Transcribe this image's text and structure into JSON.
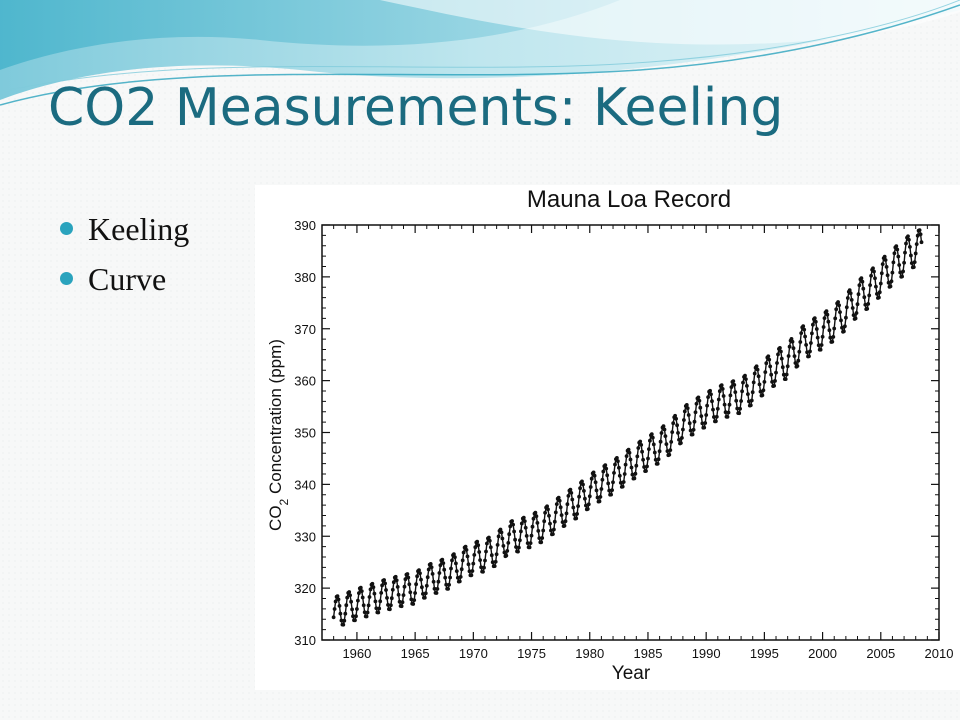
{
  "slide": {
    "title": "CO2 Measurements: Keeling",
    "bullets": [
      "Keeling",
      "Curve"
    ]
  },
  "colors": {
    "title": "#1b6b80",
    "bullet": "#2aa3bd",
    "swoosh_light": "#bfe6ee",
    "swoosh_dark": "#4fb8cf",
    "series": "#111111"
  },
  "chart_data": {
    "type": "line",
    "title": "Mauna Loa Record",
    "xlabel": "Year",
    "ylabel_main": "CO",
    "ylabel_sub": "2",
    "ylabel_rest": " Concentration (ppm)",
    "xlim": [
      1957,
      2010
    ],
    "ylim": [
      310,
      390
    ],
    "xticks": [
      1960,
      1965,
      1970,
      1975,
      1980,
      1985,
      1990,
      1995,
      2000,
      2005,
      2010
    ],
    "yticks": [
      310,
      320,
      330,
      340,
      350,
      360,
      370,
      380,
      390
    ],
    "grid": false,
    "series": [
      {
        "markers": "filled-circle",
        "x": [
          1958,
          1959,
          1960,
          1961,
          1962,
          1963,
          1964,
          1965,
          1966,
          1967,
          1968,
          1969,
          1970,
          1971,
          1972,
          1973,
          1974,
          1975,
          1976,
          1977,
          1978,
          1979,
          1980,
          1981,
          1982,
          1983,
          1984,
          1985,
          1986,
          1987,
          1988,
          1989,
          1990,
          1991,
          1992,
          1993,
          1994,
          1995,
          1996,
          1997,
          1998,
          1999,
          2000,
          2001,
          2002,
          2003,
          2004,
          2005,
          2006,
          2007,
          2008
        ],
        "y": [
          315.3,
          316.0,
          316.9,
          317.6,
          318.4,
          319.0,
          319.6,
          320.0,
          321.4,
          322.2,
          323.0,
          324.6,
          325.7,
          326.3,
          327.5,
          329.7,
          330.2,
          331.1,
          332.1,
          333.8,
          335.4,
          336.8,
          338.7,
          340.1,
          341.4,
          343.0,
          344.6,
          346.0,
          347.4,
          349.2,
          351.6,
          353.1,
          354.4,
          355.6,
          356.4,
          357.1,
          358.8,
          360.8,
          362.6,
          363.8,
          366.6,
          368.3,
          369.5,
          371.1,
          373.2,
          375.8,
          377.5,
          379.8,
          381.9,
          383.8,
          385.6
        ]
      }
    ]
  }
}
